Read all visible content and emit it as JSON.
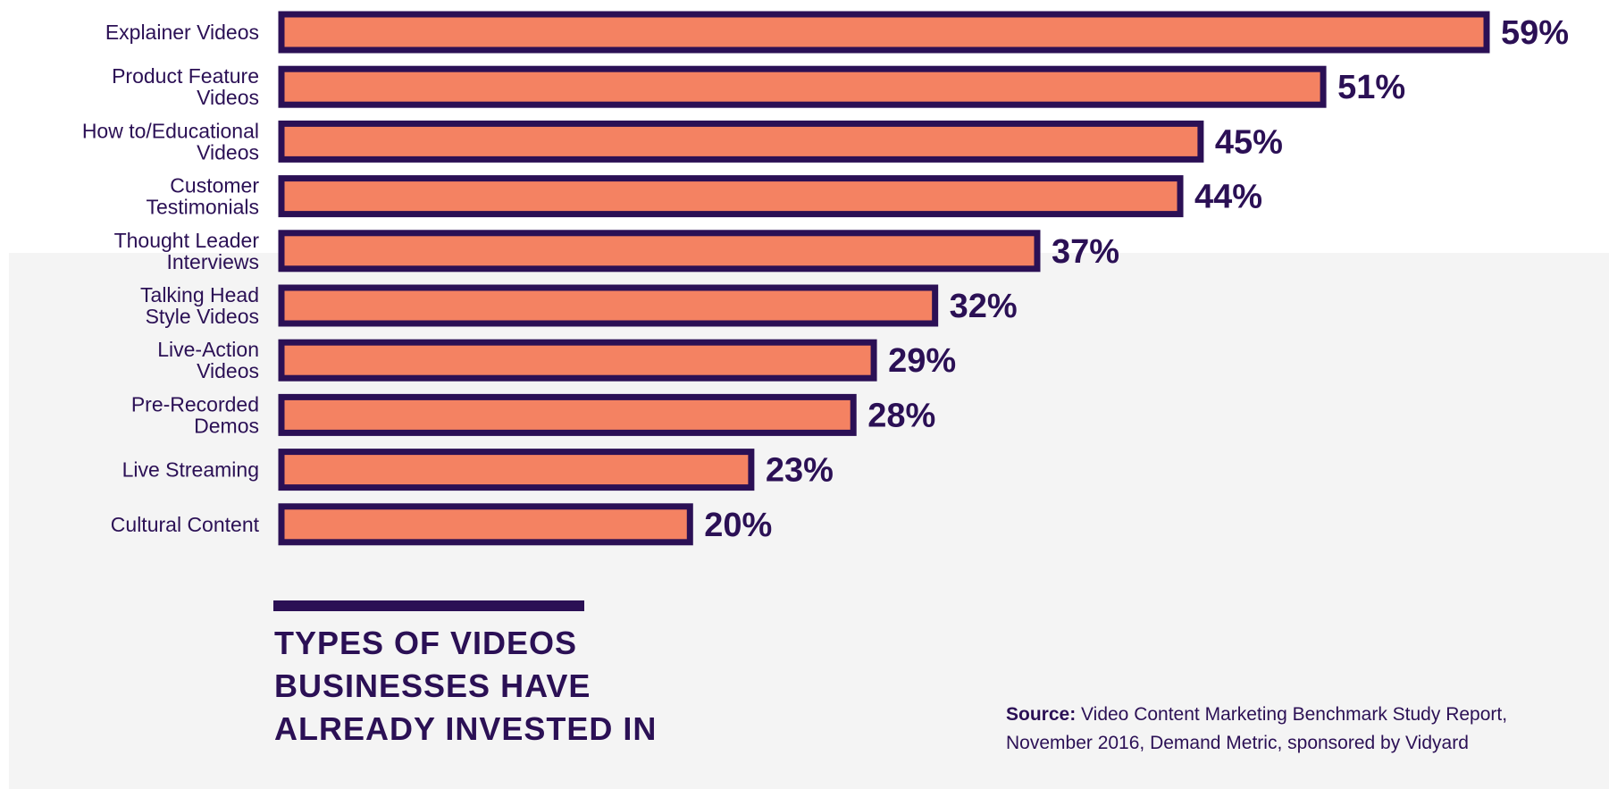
{
  "colors": {
    "bar_fill": "#f48262",
    "bar_stroke": "#2b1055",
    "text": "#2b1055",
    "background": "#f4f4f4"
  },
  "title": "TYPES OF VIDEOS BUSINESSES HAVE ALREADY INVESTED IN",
  "source": {
    "label": "Source:",
    "text": "Video Content Marketing Benchmark Study Report, November 2016, Demand Metric, sponsored by Vidyard"
  },
  "chart_data": {
    "type": "bar",
    "orientation": "horizontal",
    "categories": [
      "Explainer Videos",
      "Product Feature Videos",
      "How to/Educational Videos",
      "Customer Testimonials",
      "Thought Leader Interviews",
      "Talking Head Style Videos",
      "Live-Action Videos",
      "Pre-Recorded Demos",
      "Live Streaming",
      "Cultural Content"
    ],
    "category_lines": [
      [
        "Explainer Videos"
      ],
      [
        "Product Feature",
        "Videos"
      ],
      [
        "How to/Educational",
        "Videos"
      ],
      [
        "Customer",
        "Testimonials"
      ],
      [
        "Thought Leader",
        "Interviews"
      ],
      [
        "Talking Head",
        "Style Videos"
      ],
      [
        "Live-Action",
        "Videos"
      ],
      [
        "Pre-Recorded",
        "Demos"
      ],
      [
        "Live Streaming"
      ],
      [
        "Cultural Content"
      ]
    ],
    "values": [
      59,
      51,
      45,
      44,
      37,
      32,
      29,
      28,
      23,
      20
    ],
    "value_labels": [
      "59%",
      "51%",
      "45%",
      "44%",
      "37%",
      "32%",
      "29%",
      "28%",
      "23%",
      "20%"
    ],
    "title": "TYPES OF VIDEOS BUSINESSES HAVE ALREADY INVESTED IN",
    "xlim": [
      0,
      59
    ],
    "grid": false,
    "legend": "none"
  }
}
